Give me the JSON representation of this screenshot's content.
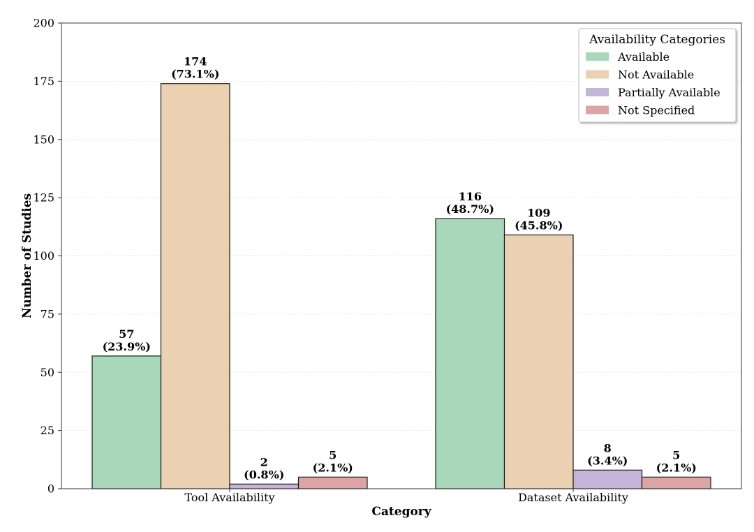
{
  "chart_data": {
    "type": "bar",
    "title": "",
    "xlabel": "Category",
    "ylabel": "Number of Studies",
    "ylim": [
      0,
      200
    ],
    "yticks": [
      0,
      25,
      50,
      75,
      100,
      125,
      150,
      175,
      200
    ],
    "categories": [
      "Tool Availability",
      "Dataset Availability"
    ],
    "legend_title": "Availability Categories",
    "legend_position": "top-right",
    "grid": "horizontal-faint",
    "series": [
      {
        "name": "Available",
        "color": "#a8d8b9",
        "values": [
          57,
          116
        ],
        "labels": [
          "(23.9%)",
          "(48.7%)"
        ]
      },
      {
        "name": "Not Available",
        "color": "#ebd1b1",
        "values": [
          174,
          109
        ],
        "labels": [
          "(73.1%)",
          "(45.8%)"
        ]
      },
      {
        "name": "Partially Available",
        "color": "#c3b4d8",
        "values": [
          2,
          8
        ],
        "labels": [
          "(0.8%)",
          "(3.4%)"
        ]
      },
      {
        "name": "Not Specified",
        "color": "#dba5a5",
        "values": [
          5,
          5
        ],
        "labels": [
          "(2.1%)",
          "(2.1%)"
        ]
      }
    ]
  }
}
